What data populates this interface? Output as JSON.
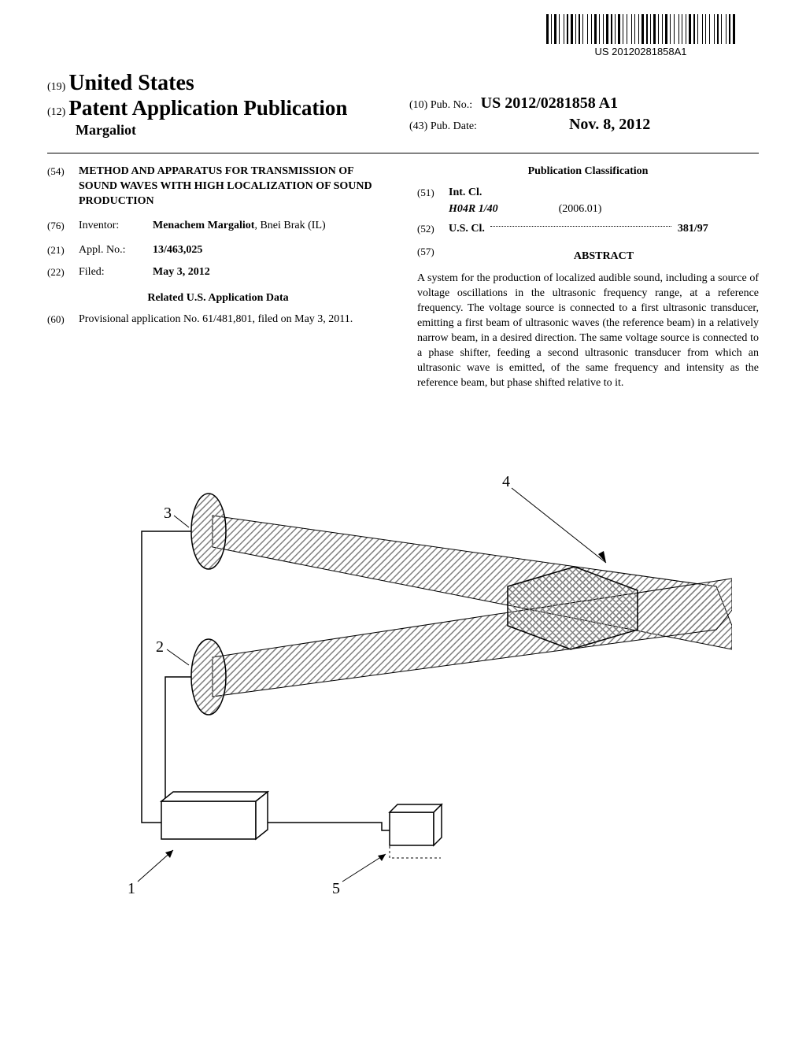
{
  "barcode": {
    "text": "US 20120281858A1",
    "widths": [
      3,
      1,
      1,
      1,
      3,
      1,
      1,
      3,
      1,
      1,
      2,
      1,
      3,
      1,
      1,
      1,
      2,
      1,
      1,
      3,
      1,
      2,
      1,
      1,
      3,
      1,
      1,
      2,
      1,
      1,
      3,
      1,
      2,
      1,
      1,
      1,
      3,
      1,
      1,
      2,
      1,
      3,
      1,
      1,
      1,
      2,
      1,
      1,
      3,
      1,
      2,
      1,
      1,
      1,
      3,
      1,
      1,
      2,
      1,
      1,
      3,
      1,
      1,
      2,
      1,
      3,
      1,
      1,
      1,
      2,
      1,
      1,
      3,
      1,
      2,
      1,
      1,
      3,
      1,
      1,
      1,
      2,
      1,
      3,
      1,
      1,
      2,
      1,
      1,
      3,
      1,
      1,
      2,
      1,
      3
    ]
  },
  "header": {
    "code19": "(19)",
    "country": "United States",
    "code12": "(12)",
    "pub_type": "Patent Application Publication",
    "authors": "Margaliot",
    "code10": "(10)",
    "pubno_label": "Pub. No.:",
    "pubno": "US 2012/0281858 A1",
    "code43": "(43)",
    "pubdate_label": "Pub. Date:",
    "pubdate": "Nov. 8, 2012"
  },
  "left": {
    "code54": "(54)",
    "title": "METHOD AND APPARATUS FOR TRANSMISSION OF SOUND WAVES WITH HIGH LOCALIZATION OF SOUND PRODUCTION",
    "code76": "(76)",
    "inventor_label": "Inventor:",
    "inventor_name": "Menachem Margaliot",
    "inventor_loc": ", Bnei Brak (IL)",
    "code21": "(21)",
    "applno_label": "Appl. No.:",
    "applno": "13/463,025",
    "code22": "(22)",
    "filed_label": "Filed:",
    "filed": "May 3, 2012",
    "related_heading": "Related U.S. Application Data",
    "code60": "(60)",
    "provisional": "Provisional application No. 61/481,801, filed on May 3, 2011."
  },
  "right": {
    "classif_heading": "Publication Classification",
    "code51": "(51)",
    "intcl_label": "Int. Cl.",
    "intcl_code": "H04R 1/40",
    "intcl_date": "(2006.01)",
    "code52": "(52)",
    "uscl_label": "U.S. Cl.",
    "uscl_val": "381/97",
    "code57": "(57)",
    "abstract_heading": "ABSTRACT",
    "abstract": "A system for the production of localized audible sound, including a source of voltage oscillations in the ultrasonic frequency range, at a reference frequency. The voltage source is connected to a first ultrasonic transducer, emitting a first beam of ultrasonic waves (the reference beam) in a relatively narrow beam, in a desired direction. The same voltage source is connected to a phase shifter, feeding a second ultrasonic transducer from which an ultrasonic wave is emitted, of the same frequency and intensity as the reference beam, but phase shifted relative to it."
  },
  "figure": {
    "refs": [
      "1",
      "2",
      "3",
      "4",
      "5"
    ],
    "hatch_color": "#808080",
    "line_color": "#000000"
  }
}
